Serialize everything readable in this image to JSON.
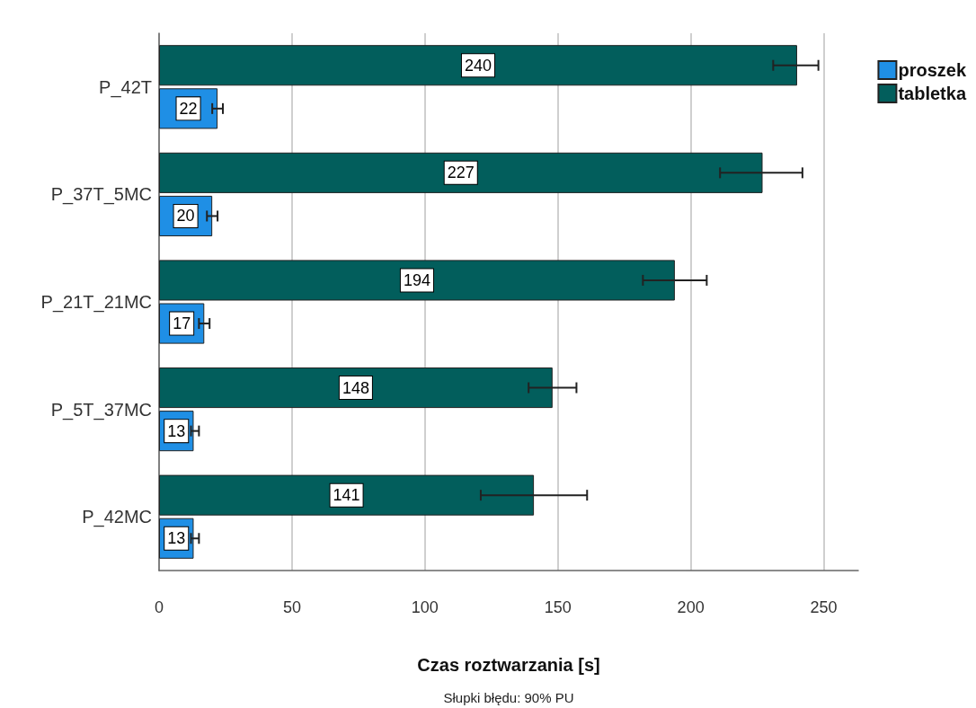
{
  "chart_data": {
    "type": "bar",
    "orientation": "horizontal",
    "categories": [
      "P_42T",
      "P_37T_5MC",
      "P_21T_21MC",
      "P_5T_37MC",
      "P_42MC"
    ],
    "series": [
      {
        "name": "proszek",
        "color": "#1f8fe5",
        "values": [
          22,
          20,
          17,
          13,
          13
        ],
        "errors": [
          [
            20,
            24
          ],
          [
            18,
            22
          ],
          [
            15,
            19
          ],
          [
            12,
            15
          ],
          [
            12,
            15
          ]
        ]
      },
      {
        "name": "tabletka",
        "color": "#025e5c",
        "values": [
          240,
          227,
          194,
          148,
          141
        ],
        "errors": [
          [
            231,
            248
          ],
          [
            211,
            242
          ],
          [
            182,
            206
          ],
          [
            139,
            157
          ],
          [
            121,
            161
          ]
        ]
      }
    ],
    "xlabel": "Czas roztwarzania [s]",
    "xlim": [
      0,
      263
    ],
    "xticks": [
      0,
      50,
      100,
      150,
      200,
      250
    ],
    "grid": "x",
    "legend": "top right",
    "data_labels": true,
    "annotations": [
      "Słupki błędu: 90% PU"
    ]
  }
}
